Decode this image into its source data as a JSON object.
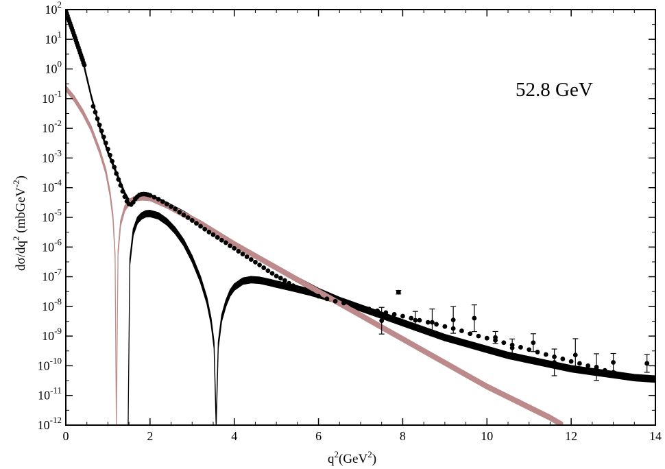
{
  "chart_data": {
    "type": "scatter",
    "annotation": "52.8 GeV",
    "xlabel": {
      "base": "q",
      "sup": "2",
      "rest": "(GeV",
      "sup2": "2",
      "close": ")"
    },
    "ylabel": {
      "part1": "dσ/dq",
      "sup1": "2",
      "part2": " (mbGeV",
      "sup2": "-2",
      "part3": ")"
    },
    "xlim": [
      0,
      14
    ],
    "ylim_log10": [
      -12,
      2
    ],
    "yscale": "log",
    "grid": false,
    "x_ticks": [
      0,
      2,
      4,
      6,
      8,
      10,
      12,
      14
    ],
    "y_ticks_log10": [
      2,
      1,
      0,
      -1,
      -2,
      -3,
      -4,
      -5,
      -6,
      -7,
      -8,
      -9,
      -10,
      -11,
      -12
    ],
    "colors": {
      "data": "#000000",
      "total_band": "#000000",
      "rose_band": "#bc8a8a"
    },
    "series": [
      {
        "role": "experimental-data",
        "points": [
          [
            0.0,
            90
          ],
          [
            0.02,
            75
          ],
          [
            0.04,
            62
          ],
          [
            0.06,
            50
          ],
          [
            0.08,
            42
          ],
          [
            0.1,
            35
          ],
          [
            0.12,
            29
          ],
          [
            0.14,
            24
          ],
          [
            0.16,
            20
          ],
          [
            0.18,
            16.5
          ],
          [
            0.2,
            13.5
          ],
          [
            0.22,
            11.2
          ],
          [
            0.24,
            9.2
          ],
          [
            0.26,
            7.6
          ],
          [
            0.28,
            6.3
          ],
          [
            0.3,
            5.2
          ],
          [
            0.32,
            4.3
          ],
          [
            0.34,
            3.5
          ],
          [
            0.36,
            2.9
          ],
          [
            0.38,
            2.4
          ],
          [
            0.4,
            2.0
          ],
          [
            0.42,
            1.6
          ],
          [
            0.44,
            1.35
          ],
          [
            0.65,
            0.055
          ],
          [
            0.7,
            0.035
          ],
          [
            0.75,
            0.021
          ],
          [
            0.8,
            0.013
          ],
          [
            0.85,
            0.0082
          ],
          [
            0.9,
            0.0051
          ],
          [
            0.95,
            0.0032
          ],
          [
            1.0,
            0.002
          ],
          [
            1.05,
            0.00125
          ],
          [
            1.1,
            0.00078
          ],
          [
            1.15,
            0.00049
          ],
          [
            1.2,
            0.0003
          ],
          [
            1.25,
            0.00019
          ],
          [
            1.3,
            0.00012
          ],
          [
            1.35,
            7.5e-05
          ],
          [
            1.4,
            5e-05
          ],
          [
            1.45,
            3.5e-05
          ],
          [
            1.5,
            2.8e-05
          ],
          [
            1.55,
            2.7e-05
          ],
          [
            1.6,
            3.2e-05
          ],
          [
            1.65,
            4.2e-05
          ],
          [
            1.7,
            5e-05
          ],
          [
            1.75,
            5.7e-05
          ],
          [
            1.8,
            6e-05
          ],
          [
            1.85,
            6.1e-05
          ],
          [
            1.9,
            6e-05
          ],
          [
            1.95,
            5.8e-05
          ],
          [
            2.0,
            5.5e-05
          ],
          [
            2.1,
            4.8e-05
          ],
          [
            2.2,
            4.1e-05
          ],
          [
            2.3,
            3.4e-05
          ],
          [
            2.4,
            2.8e-05
          ],
          [
            2.5,
            2.3e-05
          ],
          [
            2.6,
            1.9e-05
          ],
          [
            2.7,
            1.5e-05
          ],
          [
            2.8,
            1.2e-05
          ],
          [
            2.9,
            9.8e-06
          ],
          [
            3.0,
            7.9e-06
          ],
          [
            3.1,
            6.3e-06
          ],
          [
            3.2,
            5e-06
          ],
          [
            3.3,
            4e-06
          ],
          [
            3.4,
            3.2e-06
          ],
          [
            3.5,
            2.6e-06
          ],
          [
            3.6,
            2.1e-06
          ],
          [
            3.7,
            1.7e-06
          ],
          [
            3.8,
            1.4e-06
          ],
          [
            3.9,
            1.1e-06
          ],
          [
            4.0,
            9e-07
          ],
          [
            4.1,
            7.2e-07
          ],
          [
            4.2,
            5.8e-07
          ],
          [
            4.3,
            4.7e-07
          ],
          [
            4.4,
            3.8e-07
          ],
          [
            4.5,
            3.1e-07
          ],
          [
            4.6,
            2.5e-07
          ],
          [
            4.7,
            2e-07
          ],
          [
            4.8,
            1.6e-07
          ],
          [
            4.9,
            1.3e-07
          ],
          [
            5.0,
            1.05e-07
          ],
          [
            5.1,
            9e-08
          ],
          [
            5.2,
            7.5e-08
          ],
          [
            5.3,
            6e-08
          ],
          [
            5.4,
            5e-08
          ],
          [
            5.55,
            4e-08
          ],
          [
            5.7,
            3.2e-08
          ],
          [
            5.85,
            2.7e-08
          ],
          [
            6.0,
            2.2e-08
          ],
          [
            6.2,
            1.8e-08
          ],
          [
            6.4,
            1.5e-08
          ],
          [
            6.6,
            1.3e-08
          ],
          [
            6.8,
            1.1e-08
          ],
          [
            7.0,
            9.5e-09
          ],
          [
            7.2,
            8.2e-09
          ],
          [
            7.4,
            7.1e-09
          ],
          [
            7.6,
            6.2e-09
          ],
          [
            7.8,
            5.4e-09
          ],
          [
            8.0,
            4.7e-09
          ],
          [
            8.2,
            4e-09
          ],
          [
            8.4,
            3.4e-09
          ],
          [
            8.6,
            2.9e-09
          ],
          [
            8.8,
            2.5e-09
          ],
          [
            9.0,
            2.1e-09
          ],
          [
            9.2,
            1.8e-09
          ],
          [
            9.4,
            1.5e-09
          ],
          [
            9.6,
            1.2e-09
          ],
          [
            9.8,
            1e-09
          ],
          [
            10.0,
            8.5e-10
          ],
          [
            10.2,
            7.2e-10
          ],
          [
            10.4,
            6e-10
          ],
          [
            10.6,
            5e-10
          ],
          [
            10.8,
            4.2e-10
          ],
          [
            11.0,
            3.5e-10
          ],
          [
            11.2,
            2.9e-10
          ],
          [
            11.4,
            2.4e-10
          ],
          [
            11.6,
            2e-10
          ],
          [
            11.8,
            1.7e-10
          ],
          [
            12.0,
            1.4e-10
          ],
          [
            12.2,
            1.2e-10
          ],
          [
            12.4,
            1e-10
          ],
          [
            12.6,
            8.5e-11
          ],
          [
            12.8,
            7e-11
          ],
          [
            13.0,
            6e-11
          ],
          [
            13.2,
            5e-11
          ],
          [
            13.4,
            4.2e-11
          ],
          [
            13.8,
            1.2e-10
          ]
        ],
        "error_points": [
          [
            7.5,
            3.3e-09,
            0.45
          ],
          [
            7.9,
            3e-08,
            0.06
          ],
          [
            8.3,
            3.4e-09,
            0.3
          ],
          [
            8.7,
            2.9e-09,
            0.45
          ],
          [
            9.2,
            3.5e-09,
            0.45
          ],
          [
            9.7,
            4e-09,
            0.45
          ],
          [
            10.2,
            9e-10,
            0.2
          ],
          [
            10.6,
            4e-10,
            0.3
          ],
          [
            11.1,
            6e-10,
            0.3
          ],
          [
            11.6,
            1.3e-10,
            0.45
          ],
          [
            12.1,
            2.3e-10,
            0.55
          ],
          [
            12.6,
            9e-11,
            0.45
          ],
          [
            13.0,
            1.3e-10,
            0.3
          ],
          [
            13.8,
            1.2e-10,
            0.3
          ]
        ]
      },
      {
        "role": "total-fit-band",
        "x": [
          0.0,
          0.2,
          0.4,
          0.6,
          0.8,
          1.0,
          1.2,
          1.3,
          1.4,
          1.5,
          1.6,
          1.7,
          1.8,
          1.9,
          2.0,
          2.4,
          2.8,
          3.2,
          3.6,
          4.0,
          4.4,
          4.8,
          5.2,
          5.6,
          6.0,
          6.5,
          7.0,
          7.5,
          8.0,
          8.5,
          9.0,
          9.5,
          10.0,
          10.5,
          11.0,
          11.5,
          12.0,
          12.5,
          13.0,
          13.5,
          14.0
        ],
        "y_log10": [
          1.95,
          1.1,
          0.3,
          -0.9,
          -1.95,
          -2.8,
          -3.5,
          -3.85,
          -4.2,
          -4.45,
          -4.4,
          -4.3,
          -4.25,
          -4.25,
          -4.27,
          -4.55,
          -4.85,
          -5.2,
          -5.55,
          -5.9,
          -6.2,
          -6.55,
          -6.85,
          -7.15,
          -7.45,
          -7.75,
          -8.05,
          -8.3,
          -8.55,
          -8.8,
          -9.05,
          -9.25,
          -9.45,
          -9.65,
          -9.8,
          -9.95,
          -10.1,
          -10.2,
          -10.3,
          -10.4,
          -10.45
        ],
        "width_log10": 0.12
      },
      {
        "role": "black-interference-band",
        "x": [
          1.48,
          1.52,
          1.6,
          1.7,
          1.8,
          1.9,
          2.0,
          2.2,
          2.4,
          2.6,
          2.8,
          3.0,
          3.2,
          3.35,
          3.45,
          3.52,
          3.57,
          3.62,
          3.7,
          3.8,
          3.9,
          4.0,
          4.2,
          4.4,
          4.6,
          4.8,
          5.0,
          5.4,
          5.8,
          6.2,
          6.6,
          7.0,
          7.5,
          8.0,
          8.5,
          9.0,
          9.5,
          10.0,
          10.5,
          11.0,
          11.5,
          12.0,
          12.5,
          13.0,
          13.5,
          14.0
        ],
        "y_log10": [
          -12,
          -6.5,
          -5.5,
          -5.1,
          -4.95,
          -4.88,
          -4.87,
          -4.95,
          -5.15,
          -5.45,
          -5.85,
          -6.4,
          -7.1,
          -7.8,
          -8.5,
          -9.3,
          -12,
          -9.3,
          -8.4,
          -7.9,
          -7.55,
          -7.35,
          -7.15,
          -7.1,
          -7.12,
          -7.18,
          -7.25,
          -7.38,
          -7.52,
          -7.68,
          -7.85,
          -8.05,
          -8.3,
          -8.55,
          -8.8,
          -9.05,
          -9.25,
          -9.45,
          -9.65,
          -9.8,
          -9.95,
          -10.1,
          -10.2,
          -10.3,
          -10.4,
          -10.45
        ],
        "width_log10": 0.22
      },
      {
        "role": "rose-band",
        "x": [
          0.0,
          0.2,
          0.4,
          0.6,
          0.8,
          0.95,
          1.05,
          1.12,
          1.17,
          1.2,
          1.24,
          1.3,
          1.4,
          1.5,
          1.6,
          1.7,
          1.8,
          2.0,
          2.4,
          2.8,
          3.2,
          3.6,
          4.0,
          4.5,
          5.0,
          5.5,
          6.0,
          6.5,
          7.0,
          7.5,
          8.0,
          8.5,
          9.0,
          9.5,
          10.0,
          10.5,
          11.0,
          11.5,
          11.8
        ],
        "y_log10": [
          -0.65,
          -1.0,
          -1.45,
          -2.0,
          -2.75,
          -3.45,
          -4.2,
          -5.0,
          -6.3,
          -12,
          -6.2,
          -5.2,
          -4.7,
          -4.5,
          -4.4,
          -4.35,
          -4.33,
          -4.35,
          -4.6,
          -4.9,
          -5.2,
          -5.55,
          -5.9,
          -6.3,
          -6.7,
          -7.1,
          -7.5,
          -7.9,
          -8.3,
          -8.7,
          -9.1,
          -9.5,
          -9.9,
          -10.3,
          -10.7,
          -11.05,
          -11.4,
          -11.75,
          -12.0
        ],
        "width_log10": 0.18
      }
    ]
  }
}
